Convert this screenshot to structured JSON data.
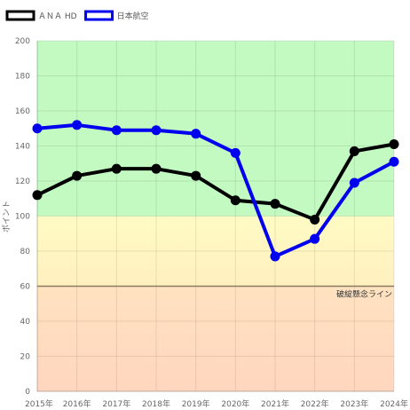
{
  "chart_data": {
    "type": "line",
    "categories": [
      "2015年",
      "2016年",
      "2017年",
      "2018年",
      "2019年",
      "2020年",
      "2021年",
      "2022年",
      "2023年",
      "2024年"
    ],
    "series": [
      {
        "name": "ＡＮＡ HD",
        "color": "#000000",
        "values": [
          112,
          123,
          127,
          127,
          123,
          109,
          107,
          98,
          137,
          141
        ]
      },
      {
        "name": "日本航空",
        "color": "#0000ee",
        "values": [
          150,
          152,
          149,
          149,
          147,
          136,
          77,
          87,
          119,
          131
        ]
      }
    ],
    "ylabel": "ポイント",
    "ylim": [
      0,
      200
    ],
    "yticks": [
      "0",
      "20",
      "40",
      "60",
      "80",
      "100",
      "120",
      "140",
      "160",
      "180",
      "200"
    ],
    "grid": true,
    "legend": "top-left",
    "bands": [
      {
        "from": 100,
        "to": 200,
        "colors": [
          "#c2fac2",
          "#c2fac2"
        ]
      },
      {
        "from": 60,
        "to": 100,
        "colors": [
          "#fff0c0",
          "#fffbc4"
        ]
      },
      {
        "from": 0,
        "to": 60,
        "colors": [
          "#ffd6bf",
          "#ffe2c0"
        ]
      }
    ],
    "reference_line": {
      "value": 60,
      "label": "破綻懸念ライン",
      "color": "#8a7a60"
    }
  }
}
